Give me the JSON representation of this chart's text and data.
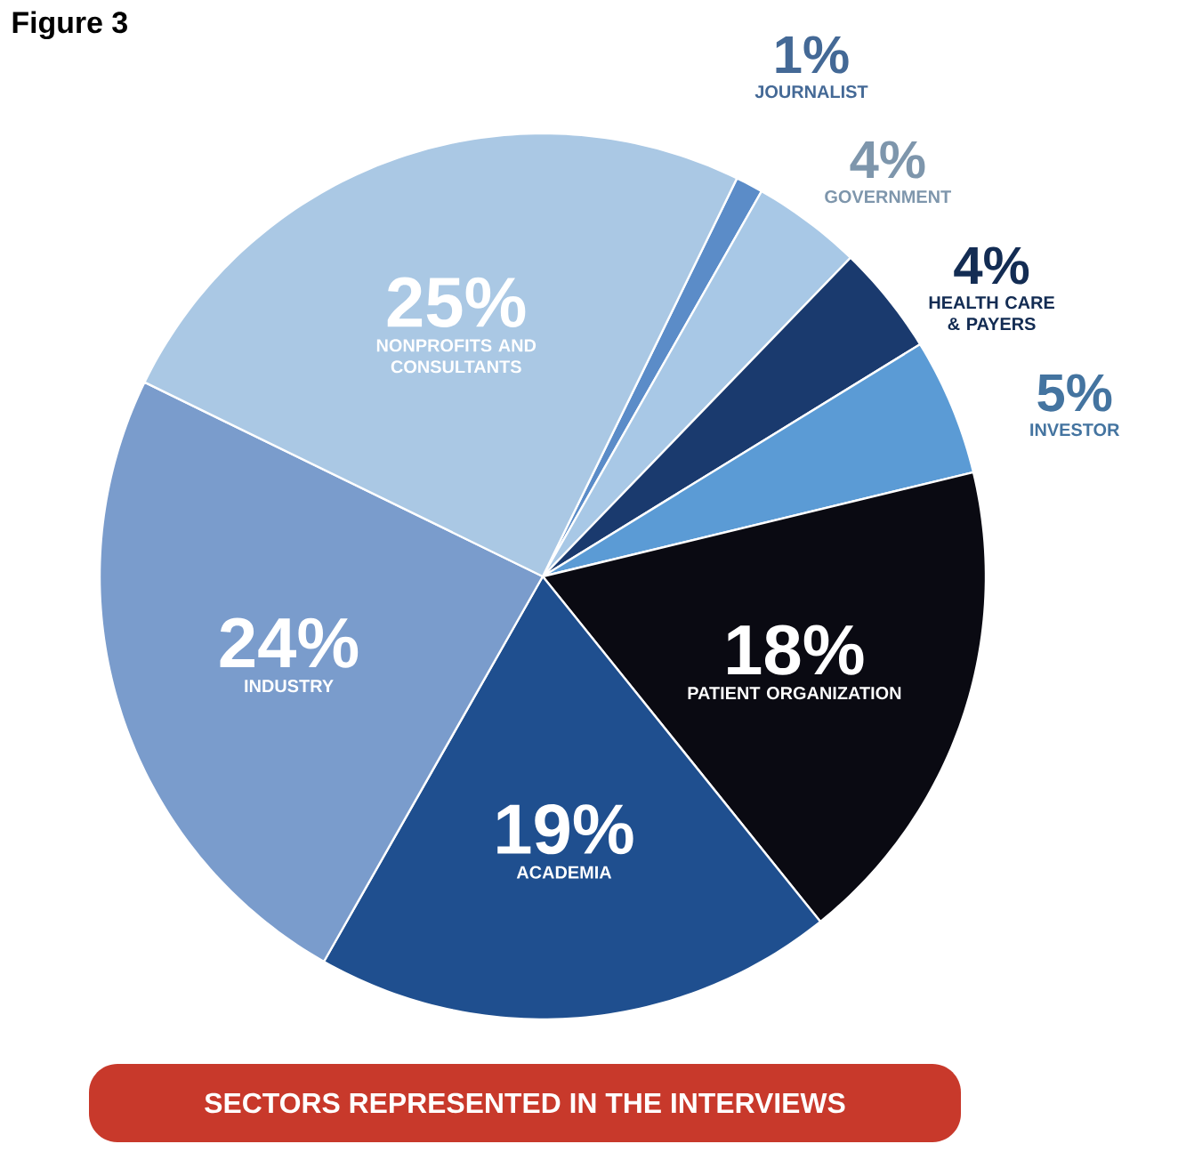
{
  "chart_data": {
    "type": "pie",
    "title": "Figure 3",
    "categories": [
      "JOURNALIST",
      "GOVERNMENT",
      "HEALTH CARE & PAYERS",
      "INVESTOR",
      "PATIENT ORGANIZATION",
      "ACADEMIA",
      "INDUSTRY",
      "NONPROFITS AND CONSULTANTS"
    ],
    "values": [
      1,
      4,
      4,
      5,
      18,
      19,
      24,
      25
    ],
    "value_labels": [
      "1%",
      "4%",
      "4%",
      "5%",
      "18%",
      "19%",
      "24%",
      "25%"
    ],
    "colors": [
      "#5b8cc8",
      "#a8c8e6",
      "#1a3a6e",
      "#5b9bd5",
      "#0a0a12",
      "#1f4f8f",
      "#7a9ccc",
      "#aac8e4"
    ],
    "annotations": [
      "SECTORS REPRESENTED IN THE INTERVIEWS"
    ]
  }
}
